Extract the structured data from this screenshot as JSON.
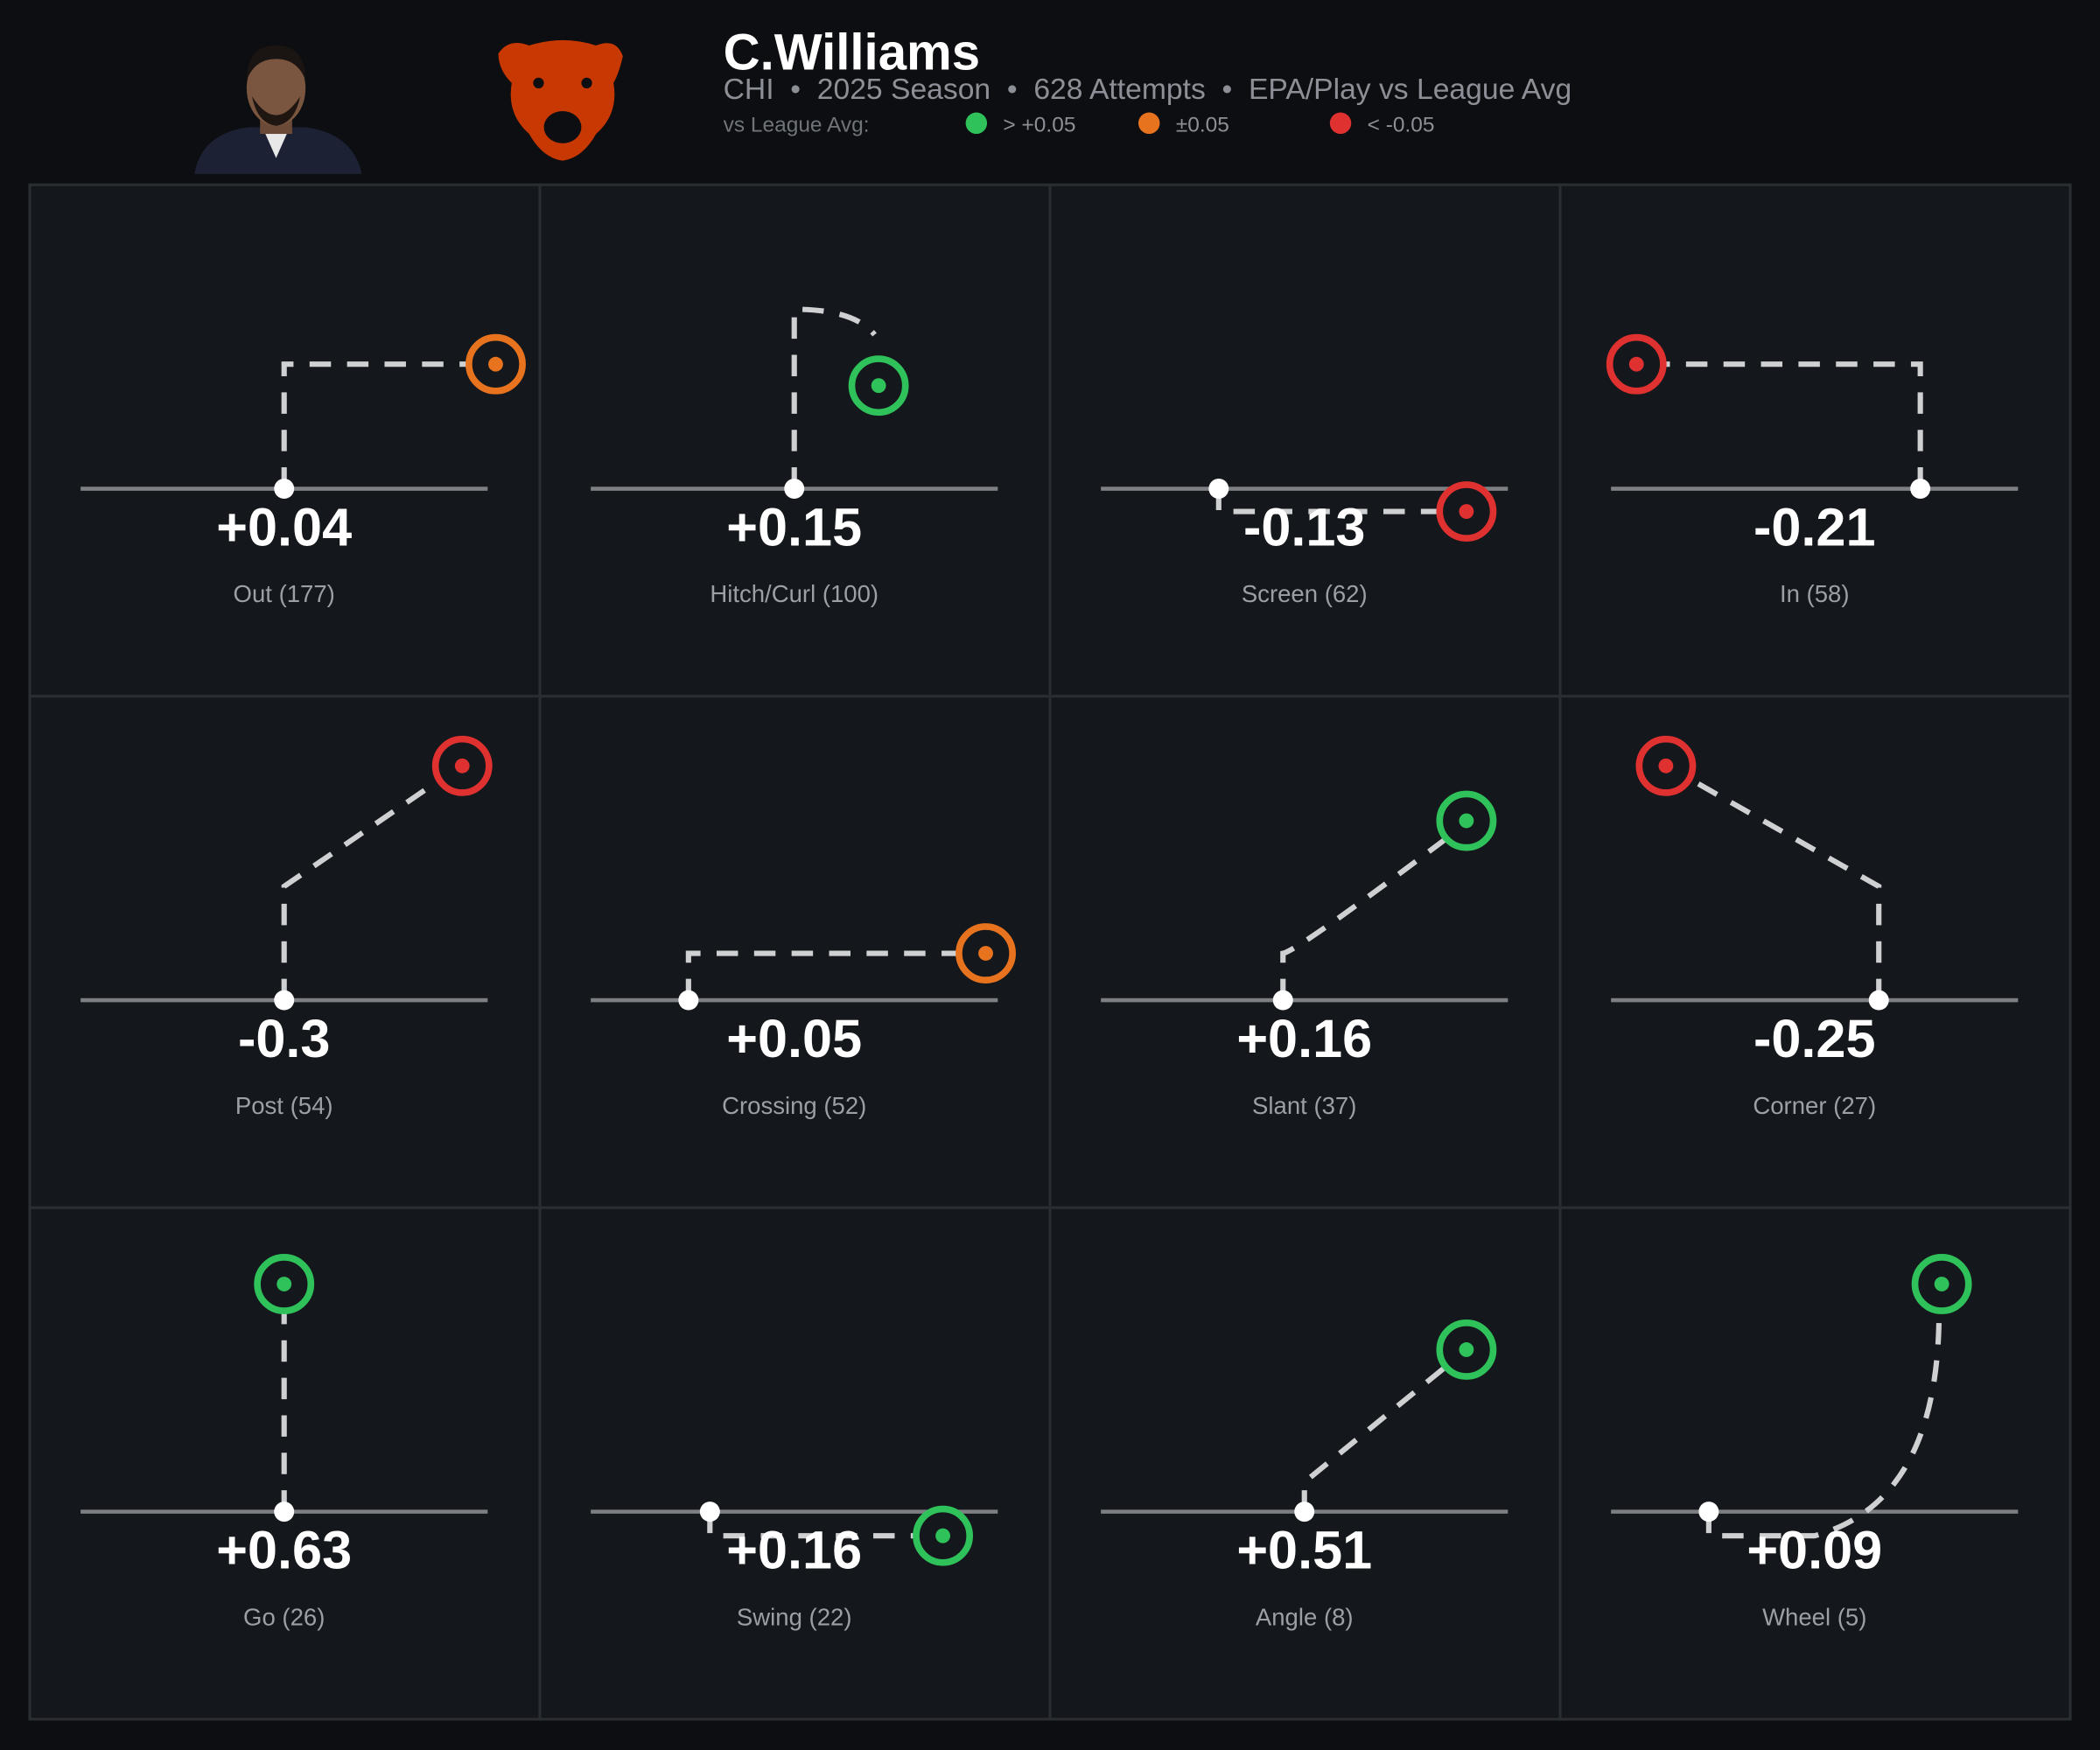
{
  "header": {
    "title": "C.Williams",
    "subtitle": "CHI  •  2025 Season  •  628 Attempts  •  EPA/Play vs League Avg"
  },
  "legend": {
    "title": "vs League Avg:",
    "items": [
      {
        "label": "> +0.05",
        "color": "#2fc25b"
      },
      {
        "label": "±0.05",
        "color": "#e8731e"
      },
      {
        "label": "< -0.05",
        "color": "#e03131"
      }
    ]
  },
  "chart_data": {
    "type": "route-grid",
    "categories": [
      "Out (177)",
      "Hitch/Curl (100)",
      "Screen (62)",
      "In (58)",
      "Post (54)",
      "Crossing (52)",
      "Slant (37)",
      "Corner (27)",
      "Go (26)",
      "Swing (22)",
      "Angle (8)",
      "Wheel (5)"
    ],
    "values": [
      0.04,
      0.15,
      -0.13,
      -0.21,
      -0.3,
      0.05,
      0.16,
      -0.25,
      0.63,
      0.16,
      0.51,
      0.09
    ],
    "value_labels": [
      "+0.04",
      "+0.15",
      "-0.13",
      "-0.21",
      "-0.3",
      "+0.05",
      "+0.16",
      "-0.25",
      "+0.63",
      "+0.16",
      "+0.51",
      "+0.09"
    ],
    "colors": [
      "#e8731e",
      "#2fc25b",
      "#e03131",
      "#e03131",
      "#e03131",
      "#e8731e",
      "#2fc25b",
      "#e03131",
      "#2fc25b",
      "#2fc25b",
      "#2fc25b",
      "#2fc25b"
    ]
  }
}
